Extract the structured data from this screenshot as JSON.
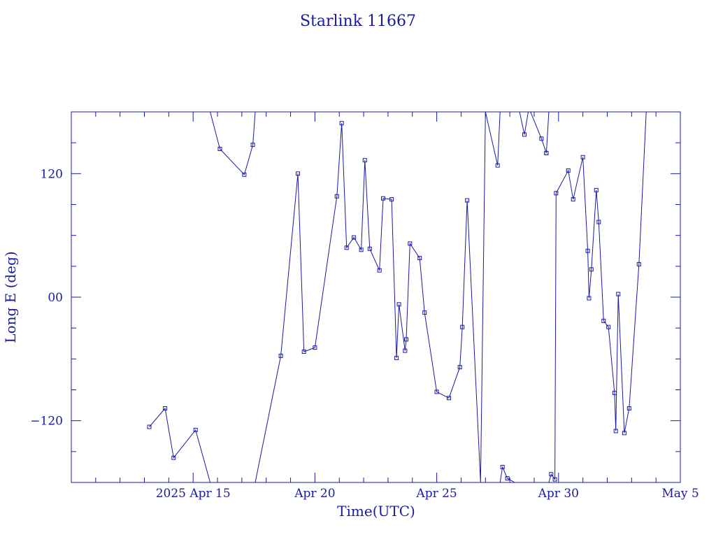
{
  "chart_data": {
    "type": "line",
    "title": "Starlink 11667",
    "xlabel": "Time(UTC)",
    "ylabel": "Long E (deg)",
    "x_ticks": [
      {
        "x": 14.0,
        "label": "2025 Apr 15"
      },
      {
        "x": 19.0,
        "label": "Apr 20"
      },
      {
        "x": 24.0,
        "label": "Apr 25"
      },
      {
        "x": 29.0,
        "label": "Apr 30"
      },
      {
        "x": 34.0,
        "label": "May  5"
      }
    ],
    "y_ticks": [
      {
        "y": -120,
        "label": "−120"
      },
      {
        "y": 0,
        "label": "00"
      },
      {
        "y": 120,
        "label": "120"
      }
    ],
    "xlim": [
      9.0,
      34.0
    ],
    "ylim": [
      -180,
      180
    ],
    "color": "#1a1aa0",
    "grid": false,
    "series": [
      {
        "x": [
          12.2,
          12.85,
          13.2,
          14.1,
          14.7
        ],
        "y": [
          -126,
          -108,
          -156,
          -129,
          -180
        ]
      },
      {
        "x": [
          14.7,
          15.1,
          16.1,
          16.45,
          16.55
        ],
        "y": [
          180,
          144,
          119,
          148,
          180
        ]
      },
      {
        "x": [
          16.55,
          17.6,
          18.3,
          18.55,
          19.0,
          19.9,
          20.1,
          20.3,
          20.6,
          20.9,
          21.05,
          21.25,
          21.65,
          21.8,
          22.15,
          22.35,
          22.45,
          22.7,
          22.75,
          22.9,
          23.3,
          23.5,
          24.0,
          24.5,
          24.95,
          25.05,
          25.25,
          25.8,
          26.0,
          26.5,
          26.6
        ],
        "y": [
          -180,
          -57,
          120,
          -53,
          -49,
          98,
          169,
          48,
          58,
          46,
          133,
          47,
          26,
          96,
          95,
          -59,
          -7,
          -52,
          -41,
          52,
          38,
          -15,
          -92,
          -98,
          -68,
          -29,
          94,
          -180,
          180,
          128,
          180
        ]
      },
      {
        "x": [
          26.6,
          26.7,
          26.9,
          27.2,
          27.4
        ],
        "y": [
          -180,
          -165,
          -176,
          -180,
          -180
        ]
      },
      {
        "x": [
          27.4,
          27.6,
          27.8,
          27.85,
          28.3,
          28.5,
          28.5,
          28.6
        ],
        "y": [
          180,
          158,
          186,
          180,
          154,
          140,
          140,
          180
        ]
      },
      {
        "x": [
          28.6,
          28.7,
          28.85,
          28.9,
          29.4,
          29.6,
          30.0,
          30.2,
          30.25,
          30.35,
          30.55,
          30.65,
          30.85,
          31.05,
          31.3,
          31.35,
          31.45,
          31.7,
          31.9,
          32.3,
          32.6,
          32.75,
          33.3
        ],
        "y": [
          -180,
          -172,
          -177,
          101,
          123,
          95,
          136,
          45,
          -1,
          27,
          104,
          73,
          -23,
          -29,
          -93,
          -130,
          3,
          -132,
          -108,
          32,
          180,
          180,
          180
        ]
      }
    ]
  }
}
